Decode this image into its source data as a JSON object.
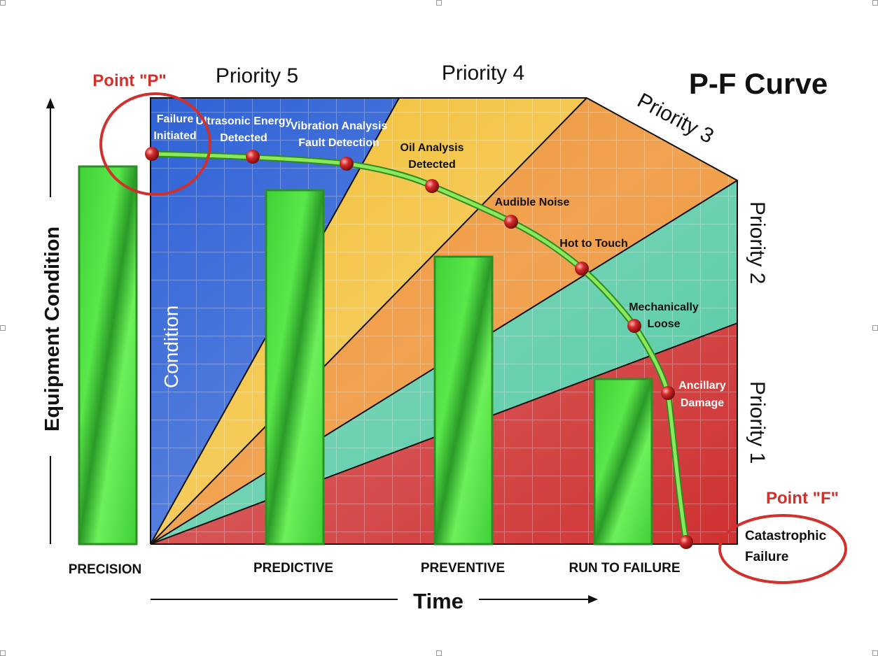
{
  "title": "P-F Curve",
  "axes": {
    "y_label": "Equipment Condition",
    "x_label": "Time"
  },
  "zone_label": "Condition",
  "priorities": {
    "p5": "Priority 5",
    "p4": "Priority 4",
    "p3": "Priority 3",
    "p2": "Priority 2",
    "p1": "Priority 1"
  },
  "points": {
    "p_label": "Point \"P\"",
    "f_label": "Point \"F\""
  },
  "curve_points": [
    {
      "line1": "Failure",
      "line2": "Initiated"
    },
    {
      "line1": "Ultrasonic Energy",
      "line2": "Detected"
    },
    {
      "line1": "Vibration Analysis",
      "line2": "Fault Detection"
    },
    {
      "line1": "Oil Analysis",
      "line2": "Detected"
    },
    {
      "line1": "Audible Noise",
      "line2": ""
    },
    {
      "line1": "Hot to Touch",
      "line2": ""
    },
    {
      "line1": "Mechanically",
      "line2": "Loose"
    },
    {
      "line1": "Ancillary",
      "line2": "Damage"
    },
    {
      "line1": "Catastrophic",
      "line2": "Failure"
    }
  ],
  "categories": {
    "precision": "PRECISION",
    "predictive": "PREDICTIVE",
    "preventive": "PREVENTIVE",
    "run_to_failure": "RUN TO FAILURE"
  },
  "colors": {
    "blue": "#2f62d6",
    "yellow": "#f2c037",
    "orange": "#ee8f2c",
    "teal": "#52c9a3",
    "red": "#cf3131",
    "bar_green": "#4ee03e",
    "curve_green": "#7fdc4a",
    "annotation_red": "#d0312d"
  }
}
